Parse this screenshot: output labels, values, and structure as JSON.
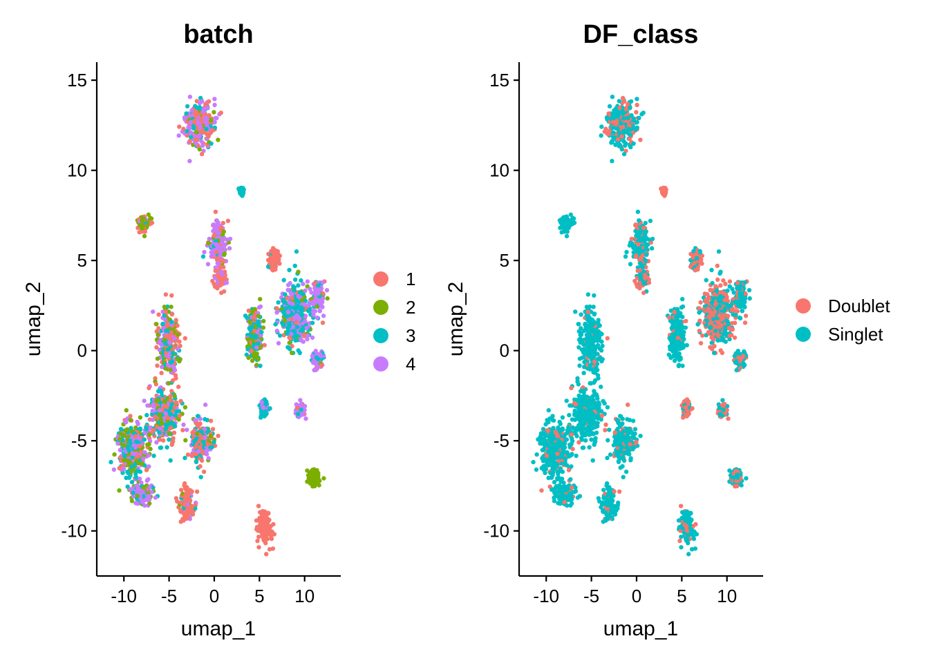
{
  "chart_data": [
    {
      "type": "scatter",
      "title": "batch",
      "xlabel": "umap_1",
      "ylabel": "umap_2",
      "xlim": [
        -13,
        14
      ],
      "ylim": [
        -12.5,
        16
      ],
      "xticks": [
        -10,
        -5,
        0,
        5,
        10
      ],
      "xtick_labels": [
        "-10",
        "-5",
        "0",
        "5",
        "10"
      ],
      "yticks": [
        -10,
        -5,
        0,
        5,
        10,
        15
      ],
      "ytick_labels": [
        "-10",
        "-5",
        "0",
        "5",
        "10",
        "15"
      ],
      "grid": false,
      "legend": {
        "position": "right",
        "entries": [
          {
            "label": "1",
            "color": "#F8766D"
          },
          {
            "label": "2",
            "color": "#7CAE00"
          },
          {
            "label": "3",
            "color": "#00BFC4"
          },
          {
            "label": "4",
            "color": "#C77CFF"
          }
        ]
      },
      "clusters": [
        {
          "x": -1.5,
          "y": 12.5,
          "sx": 1.4,
          "sy": 1.1,
          "mix": [
            0.3,
            0.15,
            0.15,
            0.4
          ]
        },
        {
          "x": 0.5,
          "y": 6.0,
          "sx": 0.8,
          "sy": 1.2,
          "mix": [
            0.25,
            0.1,
            0.05,
            0.6
          ]
        },
        {
          "x": 0.7,
          "y": 4.0,
          "sx": 0.6,
          "sy": 0.5,
          "mix": [
            0.8,
            0,
            0,
            0.2
          ]
        },
        {
          "x": -7.8,
          "y": 7.0,
          "sx": 0.6,
          "sy": 0.4,
          "mix": [
            0.4,
            0.5,
            0.05,
            0.05
          ]
        },
        {
          "x": 3.0,
          "y": 8.8,
          "sx": 0.2,
          "sy": 0.2,
          "mix": [
            0,
            0,
            1,
            0
          ]
        },
        {
          "x": 6.5,
          "y": 5.0,
          "sx": 0.6,
          "sy": 0.5,
          "mix": [
            0.9,
            0,
            0.1,
            0
          ]
        },
        {
          "x": 9.0,
          "y": 2.0,
          "sx": 1.6,
          "sy": 1.6,
          "mix": [
            0.1,
            0.1,
            0.5,
            0.3
          ]
        },
        {
          "x": 11.5,
          "y": 3.0,
          "sx": 0.7,
          "sy": 0.8,
          "mix": [
            0.05,
            0.05,
            0.1,
            0.8
          ]
        },
        {
          "x": 11.5,
          "y": -0.5,
          "sx": 0.6,
          "sy": 0.5,
          "mix": [
            0.05,
            0.05,
            0.1,
            0.8
          ]
        },
        {
          "x": 9.5,
          "y": -3.3,
          "sx": 0.4,
          "sy": 0.4,
          "mix": [
            0.05,
            0,
            0.1,
            0.85
          ]
        },
        {
          "x": 5.5,
          "y": -3.2,
          "sx": 0.4,
          "sy": 0.4,
          "mix": [
            0,
            0,
            0.6,
            0.4
          ]
        },
        {
          "x": 4.5,
          "y": 1.0,
          "sx": 0.8,
          "sy": 1.4,
          "mix": [
            0.1,
            0.3,
            0.4,
            0.2
          ]
        },
        {
          "x": 11.0,
          "y": -7.0,
          "sx": 0.6,
          "sy": 0.4,
          "mix": [
            0,
            1,
            0,
            0
          ]
        },
        {
          "x": 5.5,
          "y": -9.8,
          "sx": 0.7,
          "sy": 0.8,
          "mix": [
            1,
            0,
            0,
            0
          ]
        },
        {
          "x": -5.0,
          "y": 0.5,
          "sx": 1.0,
          "sy": 1.6,
          "mix": [
            0.35,
            0.2,
            0.25,
            0.2
          ]
        },
        {
          "x": -5.5,
          "y": -3.5,
          "sx": 1.5,
          "sy": 1.3,
          "mix": [
            0.3,
            0.2,
            0.3,
            0.2
          ]
        },
        {
          "x": -9.0,
          "y": -5.5,
          "sx": 1.5,
          "sy": 1.4,
          "mix": [
            0.15,
            0.3,
            0.3,
            0.25
          ]
        },
        {
          "x": -8.0,
          "y": -8.0,
          "sx": 1.0,
          "sy": 0.6,
          "mix": [
            0.05,
            0.2,
            0.2,
            0.55
          ]
        },
        {
          "x": -3.0,
          "y": -8.5,
          "sx": 0.7,
          "sy": 0.8,
          "mix": [
            0.8,
            0.05,
            0.1,
            0.05
          ]
        },
        {
          "x": -1.5,
          "y": -5.0,
          "sx": 1.2,
          "sy": 1.0,
          "mix": [
            0.4,
            0.1,
            0.3,
            0.2
          ]
        }
      ]
    },
    {
      "type": "scatter",
      "title": "DF_class",
      "xlabel": "umap_1",
      "ylabel": "umap_2",
      "xlim": [
        -13,
        14
      ],
      "ylim": [
        -12.5,
        16
      ],
      "xticks": [
        -10,
        -5,
        0,
        5,
        10
      ],
      "xtick_labels": [
        "-10",
        "-5",
        "0",
        "5",
        "10"
      ],
      "yticks": [
        -10,
        -5,
        0,
        5,
        10,
        15
      ],
      "ytick_labels": [
        "-10",
        "-5",
        "0",
        "5",
        "10",
        "15"
      ],
      "grid": false,
      "legend": {
        "position": "right",
        "entries": [
          {
            "label": "Doublet",
            "color": "#F8766D"
          },
          {
            "label": "Singlet",
            "color": "#00BFC4"
          }
        ]
      },
      "clusters": [
        {
          "x": -1.5,
          "y": 12.5,
          "sx": 1.4,
          "sy": 1.1,
          "mix": [
            0.3,
            0.7
          ]
        },
        {
          "x": 0.5,
          "y": 6.0,
          "sx": 0.8,
          "sy": 1.2,
          "mix": [
            0.2,
            0.8
          ]
        },
        {
          "x": 0.7,
          "y": 4.0,
          "sx": 0.6,
          "sy": 0.5,
          "mix": [
            0.5,
            0.5
          ]
        },
        {
          "x": -7.8,
          "y": 7.0,
          "sx": 0.6,
          "sy": 0.4,
          "mix": [
            0,
            1
          ]
        },
        {
          "x": 3.0,
          "y": 8.8,
          "sx": 0.2,
          "sy": 0.2,
          "mix": [
            1,
            0
          ]
        },
        {
          "x": 6.5,
          "y": 5.0,
          "sx": 0.6,
          "sy": 0.5,
          "mix": [
            0.5,
            0.5
          ]
        },
        {
          "x": 9.0,
          "y": 2.0,
          "sx": 1.6,
          "sy": 1.6,
          "mix": [
            0.6,
            0.4
          ]
        },
        {
          "x": 11.5,
          "y": 3.0,
          "sx": 0.7,
          "sy": 0.8,
          "mix": [
            0.3,
            0.7
          ]
        },
        {
          "x": 11.5,
          "y": -0.5,
          "sx": 0.6,
          "sy": 0.5,
          "mix": [
            0.3,
            0.7
          ]
        },
        {
          "x": 9.5,
          "y": -3.3,
          "sx": 0.4,
          "sy": 0.4,
          "mix": [
            0.6,
            0.4
          ]
        },
        {
          "x": 5.5,
          "y": -3.2,
          "sx": 0.4,
          "sy": 0.4,
          "mix": [
            0.7,
            0.3
          ]
        },
        {
          "x": 4.5,
          "y": 1.0,
          "sx": 0.8,
          "sy": 1.4,
          "mix": [
            0.1,
            0.9
          ]
        },
        {
          "x": 11.0,
          "y": -7.0,
          "sx": 0.6,
          "sy": 0.4,
          "mix": [
            0.4,
            0.6
          ]
        },
        {
          "x": 5.5,
          "y": -9.8,
          "sx": 0.7,
          "sy": 0.8,
          "mix": [
            0.25,
            0.75
          ]
        },
        {
          "x": -5.0,
          "y": 0.5,
          "sx": 1.0,
          "sy": 1.6,
          "mix": [
            0.05,
            0.95
          ]
        },
        {
          "x": -5.5,
          "y": -3.5,
          "sx": 1.5,
          "sy": 1.3,
          "mix": [
            0.1,
            0.9
          ]
        },
        {
          "x": -9.0,
          "y": -5.5,
          "sx": 1.5,
          "sy": 1.4,
          "mix": [
            0.15,
            0.85
          ]
        },
        {
          "x": -8.0,
          "y": -8.0,
          "sx": 1.0,
          "sy": 0.6,
          "mix": [
            0.1,
            0.9
          ]
        },
        {
          "x": -3.0,
          "y": -8.5,
          "sx": 0.7,
          "sy": 0.8,
          "mix": [
            0.1,
            0.9
          ]
        },
        {
          "x": -1.5,
          "y": -5.0,
          "sx": 1.2,
          "sy": 1.0,
          "mix": [
            0.2,
            0.8
          ]
        }
      ]
    }
  ]
}
